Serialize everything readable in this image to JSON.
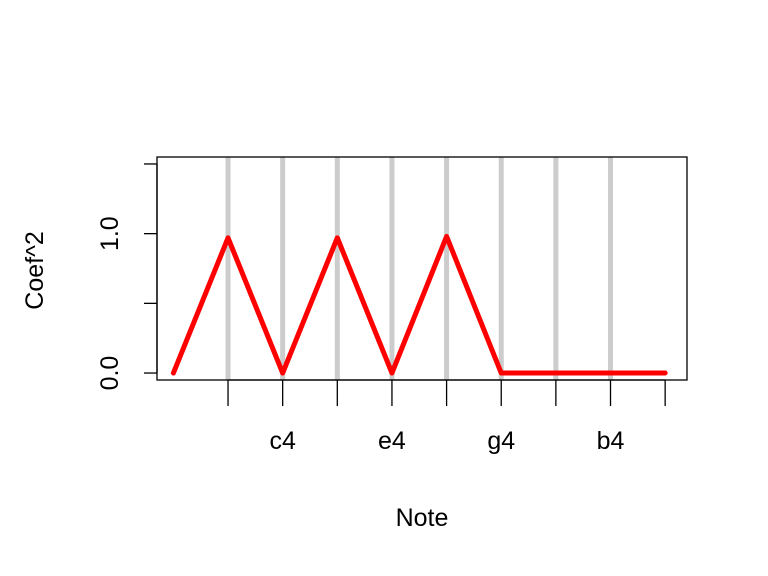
{
  "chart_data": {
    "type": "line",
    "title": "",
    "xlabel": "Note",
    "ylabel": "Coef^2",
    "x_ticks": [
      "",
      "c4",
      "",
      "e4",
      "",
      "g4",
      "",
      "b4",
      ""
    ],
    "y_ticks": [
      "0.0",
      "1.0"
    ],
    "ylim": [
      -0.05,
      1.55
    ],
    "xlim": [
      -0.3,
      9.4
    ],
    "series": [
      {
        "color": "#ff0000",
        "x": [
          0,
          1,
          2,
          3,
          4,
          5,
          6,
          7,
          8,
          9
        ],
        "y": [
          0,
          0.97,
          0,
          0.97,
          0,
          0.98,
          0,
          0,
          0,
          0
        ]
      }
    ],
    "vlines_x": [
      1,
      2,
      3,
      4,
      5,
      6,
      7,
      8
    ],
    "vline_color": "#cccccc"
  }
}
